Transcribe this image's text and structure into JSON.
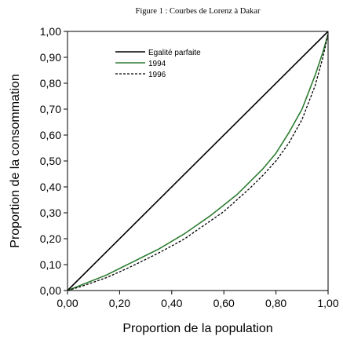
{
  "chart_data": {
    "type": "line",
    "title": "Figure 1 : Courbes de Lorenz à Dakar",
    "xlabel": "Proportion de la population",
    "ylabel": "Proportion de la consommation",
    "xlim": [
      0,
      1
    ],
    "ylim": [
      0,
      1
    ],
    "x_ticks": [
      "0,00",
      "0,20",
      "0,40",
      "0,60",
      "0,80",
      "1,00"
    ],
    "y_ticks": [
      "0,00",
      "0,10",
      "0,20",
      "0,30",
      "0,40",
      "0,50",
      "0,60",
      "0,70",
      "0,80",
      "0,90",
      "1,00"
    ],
    "grid": false,
    "legend_position": "top-left",
    "series": [
      {
        "name": "Egalité parfaite",
        "color": "#000000",
        "style": "solid",
        "x": [
          0,
          1
        ],
        "y": [
          0,
          1
        ]
      },
      {
        "name": "1994",
        "color": "#2e7d32",
        "style": "solid",
        "x": [
          0,
          0.05,
          0.1,
          0.15,
          0.2,
          0.25,
          0.3,
          0.35,
          0.4,
          0.45,
          0.5,
          0.55,
          0.6,
          0.65,
          0.7,
          0.75,
          0.8,
          0.85,
          0.9,
          0.95,
          0.98,
          1.0
        ],
        "y": [
          0,
          0.02,
          0.04,
          0.06,
          0.085,
          0.11,
          0.135,
          0.16,
          0.19,
          0.22,
          0.255,
          0.29,
          0.33,
          0.37,
          0.42,
          0.47,
          0.53,
          0.61,
          0.7,
          0.83,
          0.92,
          0.99
        ]
      },
      {
        "name": "1996",
        "color": "#000000",
        "style": "dashed",
        "x": [
          0,
          0.05,
          0.1,
          0.15,
          0.2,
          0.25,
          0.3,
          0.35,
          0.4,
          0.45,
          0.5,
          0.55,
          0.6,
          0.65,
          0.7,
          0.75,
          0.8,
          0.85,
          0.9,
          0.95,
          0.98,
          1.0
        ],
        "y": [
          0,
          0.015,
          0.032,
          0.05,
          0.072,
          0.095,
          0.12,
          0.145,
          0.172,
          0.2,
          0.235,
          0.27,
          0.305,
          0.35,
          0.395,
          0.445,
          0.5,
          0.57,
          0.66,
          0.79,
          0.9,
          0.99
        ]
      }
    ]
  }
}
